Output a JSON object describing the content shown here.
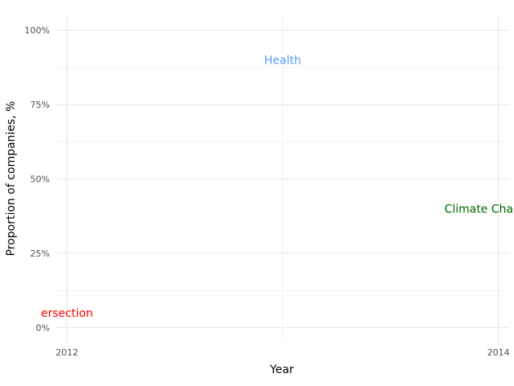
{
  "chart_data": {
    "type": "line",
    "title": "",
    "xlabel": "Year",
    "ylabel": "Proportion of companies, %",
    "xlim": [
      2011.95,
      2014.05
    ],
    "ylim": [
      -0.05,
      1.05
    ],
    "x_ticks": [
      2012,
      2014
    ],
    "x_tick_labels": [
      "2012",
      "2014"
    ],
    "y_ticks": [
      0,
      0.25,
      0.5,
      0.75,
      1.0
    ],
    "y_tick_labels": [
      "0%",
      "25%",
      "50%",
      "75%",
      "100%"
    ],
    "grid": true,
    "legend": "none",
    "series_labels": [
      {
        "text": "ersection",
        "x": 2012,
        "y": 0.05,
        "color": "#ff0000",
        "anchor": "middle"
      },
      {
        "text": "Health",
        "x": 2013,
        "y": 0.9,
        "color": "#5599ff",
        "anchor": "middle"
      },
      {
        "text": "Climate Cha",
        "x": 2013.75,
        "y": 0.4,
        "color": "#006600",
        "anchor": "start"
      }
    ]
  }
}
